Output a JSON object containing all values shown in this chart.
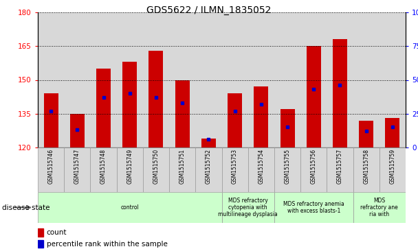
{
  "title": "GDS5622 / ILMN_1835052",
  "samples": [
    "GSM1515746",
    "GSM1515747",
    "GSM1515748",
    "GSM1515749",
    "GSM1515750",
    "GSM1515751",
    "GSM1515752",
    "GSM1515753",
    "GSM1515754",
    "GSM1515755",
    "GSM1515756",
    "GSM1515757",
    "GSM1515758",
    "GSM1515759"
  ],
  "counts": [
    144,
    135,
    155,
    158,
    163,
    150,
    124,
    144,
    147,
    137,
    165,
    168,
    132,
    133
  ],
  "baseline": 120,
  "percentile_ranks": [
    27,
    13,
    37,
    40,
    37,
    33,
    6,
    27,
    32,
    15,
    43,
    46,
    12,
    15
  ],
  "ylim_left": [
    120,
    180
  ],
  "ylim_right": [
    0,
    100
  ],
  "yticks_left": [
    120,
    135,
    150,
    165,
    180
  ],
  "yticks_right": [
    0,
    25,
    50,
    75,
    100
  ],
  "bar_color": "#CC0000",
  "dot_color": "#0000CC",
  "plot_bg": "#FFFFFF",
  "tick_bg": "#D8D8D8",
  "disease_groups": [
    {
      "label": "control",
      "start": 0,
      "end": 7
    },
    {
      "label": "MDS refractory\ncytopenia with\nmultilineage dysplasia",
      "start": 7,
      "end": 9
    },
    {
      "label": "MDS refractory anemia\nwith excess blasts-1",
      "start": 9,
      "end": 12
    },
    {
      "label": "MDS\nrefractory ane\nria with",
      "start": 12,
      "end": 14
    }
  ],
  "disease_color": "#CCFFCC",
  "disease_state_label": "disease state",
  "legend_count_label": "count",
  "legend_pct_label": "percentile rank within the sample"
}
